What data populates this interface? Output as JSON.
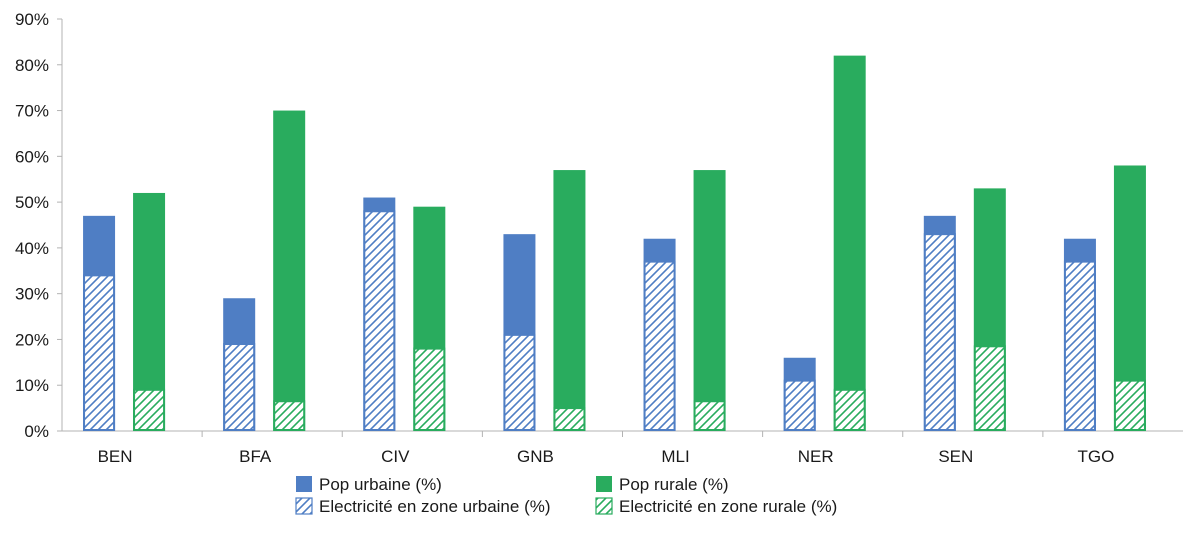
{
  "chart_data": {
    "type": "bar",
    "categories": [
      "BEN",
      "BFA",
      "CIV",
      "GNB",
      "MLI",
      "NER",
      "SEN",
      "TGO"
    ],
    "ylim": [
      0,
      90
    ],
    "y_ticks": [
      "0%",
      "10%",
      "20%",
      "30%",
      "40%",
      "50%",
      "60%",
      "70%",
      "80%",
      "90%"
    ],
    "series": [
      {
        "name": "Pop urbaine (%)",
        "values": [
          47,
          29,
          51,
          43,
          42,
          16,
          47,
          42
        ]
      },
      {
        "name": "Electricité en zone urbaine (%)",
        "values": [
          34,
          19,
          48,
          21,
          37,
          11,
          43,
          37
        ]
      },
      {
        "name": "Pop rurale (%)",
        "values": [
          52,
          70,
          49,
          57,
          57,
          82,
          53,
          58
        ]
      },
      {
        "name": "Electricité en zone rurale (%)",
        "values": [
          9,
          6.5,
          18,
          5,
          6.5,
          9,
          18.5,
          11
        ]
      }
    ],
    "legend_position": "bottom",
    "grid": false,
    "colors": {
      "urban": "#4f7ec4",
      "rural": "#29ac5e",
      "axis": "#b3b3b3"
    }
  }
}
